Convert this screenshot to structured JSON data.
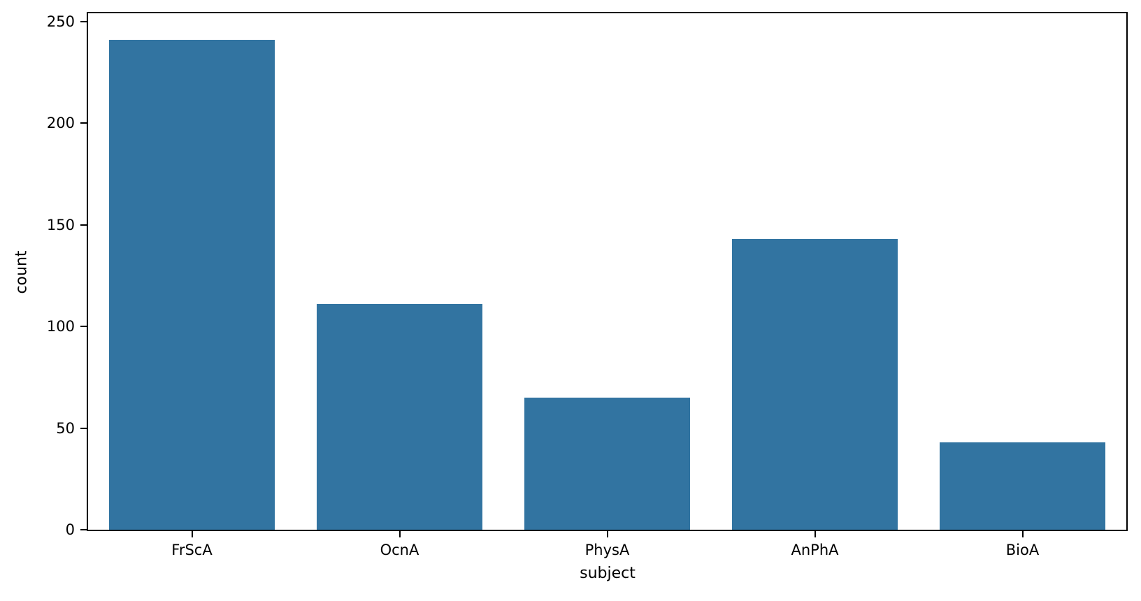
{
  "chart_data": {
    "type": "bar",
    "categories": [
      "FrScA",
      "OcnA",
      "PhysA",
      "AnPhA",
      "BioA"
    ],
    "values": [
      241,
      111,
      65,
      143,
      43
    ],
    "title": "",
    "xlabel": "subject",
    "ylabel": "count",
    "ylim": [
      0,
      254
    ],
    "yticks": [
      0,
      50,
      100,
      150,
      200,
      250
    ],
    "bar_color": "#3274A1",
    "grid": false,
    "legend": "none",
    "bar_rel_width": 0.8
  }
}
